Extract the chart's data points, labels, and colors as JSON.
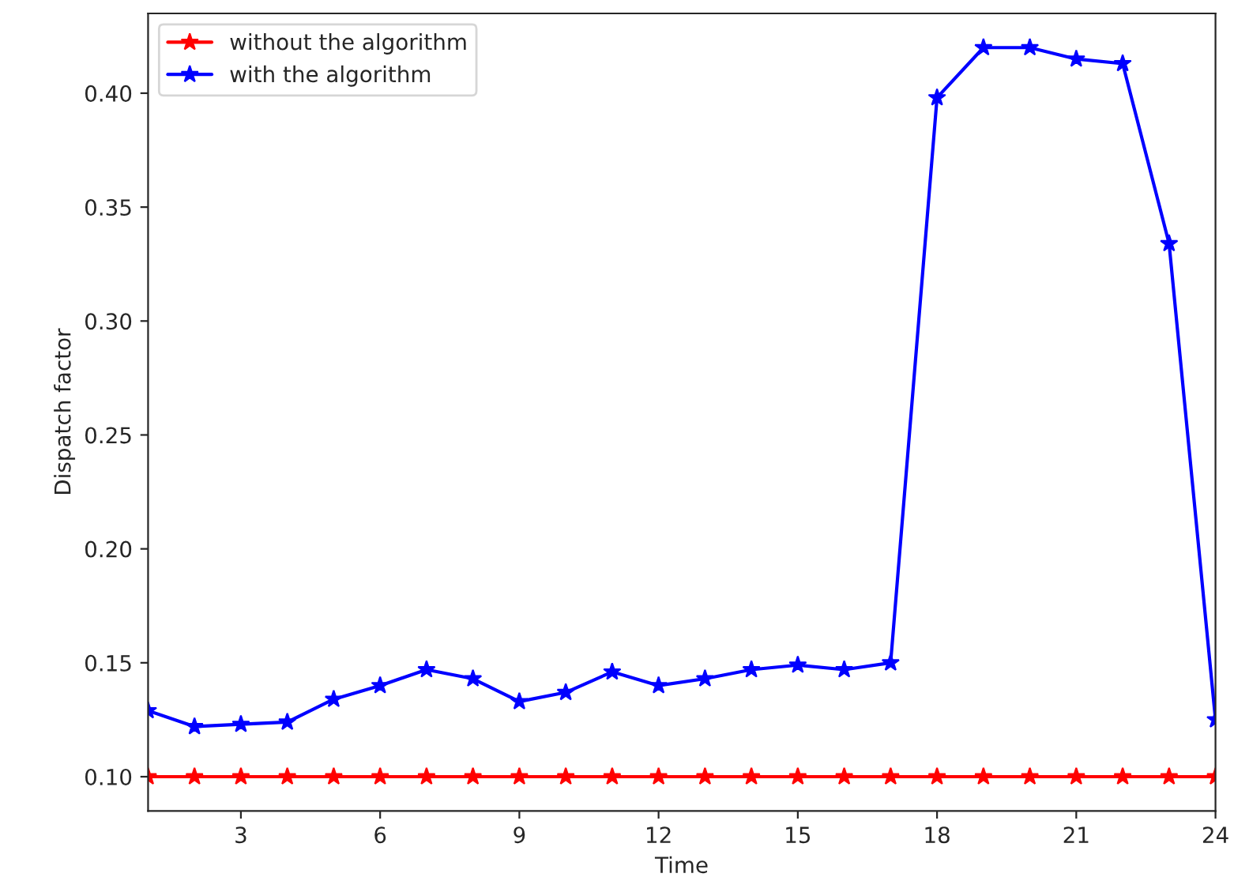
{
  "chart_data": {
    "type": "line",
    "xlabel": "Time",
    "ylabel": "Dispatch factor",
    "x": [
      1,
      2,
      3,
      4,
      5,
      6,
      7,
      8,
      9,
      10,
      11,
      12,
      13,
      14,
      15,
      16,
      17,
      18,
      19,
      20,
      21,
      22,
      23,
      24
    ],
    "series": [
      {
        "name": "without the algorithm",
        "color": "#ff0000",
        "values": [
          0.1,
          0.1,
          0.1,
          0.1,
          0.1,
          0.1,
          0.1,
          0.1,
          0.1,
          0.1,
          0.1,
          0.1,
          0.1,
          0.1,
          0.1,
          0.1,
          0.1,
          0.1,
          0.1,
          0.1,
          0.1,
          0.1,
          0.1,
          0.1
        ]
      },
      {
        "name": "with the algorithm",
        "color": "#0000ff",
        "values": [
          0.129,
          0.122,
          0.123,
          0.124,
          0.134,
          0.14,
          0.147,
          0.143,
          0.133,
          0.137,
          0.146,
          0.14,
          0.143,
          0.147,
          0.149,
          0.147,
          0.15,
          0.398,
          0.42,
          0.42,
          0.415,
          0.413,
          0.334,
          0.125
        ]
      }
    ],
    "xlim": [
      1,
      24
    ],
    "xticks": [
      3,
      6,
      9,
      12,
      15,
      18,
      21,
      24
    ],
    "ylim": [
      0.085,
      0.435
    ],
    "yticks": [
      {
        "value": 0.1,
        "label": "0.10"
      },
      {
        "value": 0.15,
        "label": "0.15"
      },
      {
        "value": 0.2,
        "label": "0.20"
      },
      {
        "value": 0.25,
        "label": "0.25"
      },
      {
        "value": 0.3,
        "label": "0.30"
      },
      {
        "value": 0.35,
        "label": "0.35"
      },
      {
        "value": 0.4,
        "label": "0.40"
      }
    ],
    "legend": "top left",
    "marker": "star",
    "line_style": "solid",
    "grid": false
  }
}
